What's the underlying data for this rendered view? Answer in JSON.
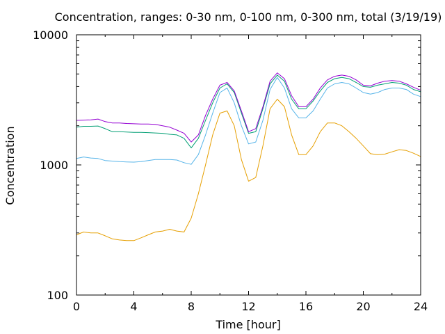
{
  "chart_data": {
    "type": "line",
    "title": "Concentration, ranges: 0-30 nm, 0-100 nm, 0-300 nm, total (3/19/19)",
    "xlabel": "Time [hour]",
    "ylabel": "Concentration",
    "xlim": [
      0,
      24
    ],
    "ylim": [
      100,
      10000
    ],
    "yscale": "log",
    "xticks": [
      0,
      4,
      8,
      12,
      16,
      20,
      24
    ],
    "yticks": [
      100,
      1000,
      10000
    ],
    "xtick_labels": [
      "0",
      "4",
      "8",
      "12",
      "16",
      "20",
      "24"
    ],
    "ytick_labels": [
      "100",
      "1000",
      "10000"
    ],
    "grid": false,
    "legend": null,
    "series": [
      {
        "color": "#e69f00",
        "x": [
          0,
          0.5,
          1,
          1.5,
          2,
          2.5,
          3,
          3.5,
          4,
          4.5,
          5,
          5.5,
          6,
          6.5,
          7,
          7.5,
          8,
          8.5,
          9,
          9.5,
          10,
          10.5,
          11,
          11.5,
          12,
          12.5,
          13,
          13.5,
          14,
          14.5,
          15,
          15.5,
          16,
          16.5,
          17,
          17.5,
          18,
          18.5,
          19,
          19.5,
          20,
          20.5,
          21,
          21.5,
          22,
          22.5,
          23,
          23.5,
          24
        ],
        "y": [
          290,
          305,
          300,
          300,
          285,
          270,
          265,
          262,
          262,
          275,
          290,
          305,
          310,
          320,
          310,
          305,
          390,
          600,
          1000,
          1700,
          2500,
          2600,
          2000,
          1100,
          750,
          800,
          1400,
          2700,
          3200,
          2800,
          1700,
          1200,
          1200,
          1400,
          1800,
          2100,
          2100,
          2000,
          1800,
          1600,
          1400,
          1220,
          1200,
          1210,
          1260,
          1310,
          1290,
          1230,
          1160
        ]
      },
      {
        "color": "#56b4e9",
        "x": [
          0,
          0.5,
          1,
          1.5,
          2,
          2.5,
          3,
          3.5,
          4,
          4.5,
          5,
          5.5,
          6,
          6.5,
          7,
          7.5,
          8,
          8.5,
          9,
          9.5,
          10,
          10.5,
          11,
          11.5,
          12,
          12.5,
          13,
          13.5,
          14,
          14.5,
          15,
          15.5,
          16,
          16.5,
          17,
          17.5,
          18,
          18.5,
          19,
          19.5,
          20,
          20.5,
          21,
          21.5,
          22,
          22.5,
          23,
          23.5,
          24
        ],
        "y": [
          1120,
          1150,
          1130,
          1120,
          1080,
          1070,
          1060,
          1055,
          1050,
          1060,
          1080,
          1100,
          1100,
          1100,
          1090,
          1040,
          1010,
          1200,
          1700,
          2500,
          3600,
          3900,
          3000,
          2000,
          1450,
          1500,
          2200,
          3800,
          4700,
          3900,
          2700,
          2300,
          2300,
          2600,
          3200,
          3900,
          4200,
          4300,
          4200,
          3900,
          3600,
          3500,
          3600,
          3800,
          3900,
          3900,
          3800,
          3500,
          3350
        ]
      },
      {
        "color": "#009e73",
        "x": [
          0,
          0.5,
          1,
          1.5,
          2,
          2.5,
          3,
          3.5,
          4,
          4.5,
          5,
          5.5,
          6,
          6.5,
          7,
          7.5,
          8,
          8.5,
          9,
          9.5,
          10,
          10.5,
          11,
          11.5,
          12,
          12.5,
          13,
          13.5,
          14,
          14.5,
          15,
          15.5,
          16,
          16.5,
          17,
          17.5,
          18,
          18.5,
          19,
          19.5,
          20,
          20.5,
          21,
          21.5,
          22,
          22.5,
          23,
          23.5,
          24
        ],
        "y": [
          1950,
          1980,
          1980,
          1990,
          1900,
          1800,
          1800,
          1790,
          1780,
          1780,
          1770,
          1760,
          1750,
          1720,
          1700,
          1600,
          1350,
          1600,
          2200,
          3000,
          3900,
          4200,
          3600,
          2500,
          1750,
          1800,
          2700,
          4200,
          4900,
          4400,
          3200,
          2700,
          2700,
          3100,
          3700,
          4300,
          4600,
          4700,
          4600,
          4300,
          4000,
          3950,
          4100,
          4200,
          4300,
          4250,
          4100,
          3800,
          3650
        ]
      },
      {
        "color": "#9400d3",
        "x": [
          0,
          0.5,
          1,
          1.5,
          2,
          2.5,
          3,
          3.5,
          4,
          4.5,
          5,
          5.5,
          6,
          6.5,
          7,
          7.5,
          8,
          8.5,
          9,
          9.5,
          10,
          10.5,
          11,
          11.5,
          12,
          12.5,
          13,
          13.5,
          14,
          14.5,
          15,
          15.5,
          16,
          16.5,
          17,
          17.5,
          18,
          18.5,
          19,
          19.5,
          20,
          20.5,
          21,
          21.5,
          22,
          22.5,
          23,
          23.5,
          24
        ],
        "y": [
          2200,
          2210,
          2220,
          2250,
          2150,
          2100,
          2100,
          2080,
          2070,
          2060,
          2060,
          2050,
          2000,
          1950,
          1850,
          1750,
          1500,
          1700,
          2400,
          3200,
          4100,
          4300,
          3700,
          2600,
          1800,
          1900,
          2800,
          4400,
          5100,
          4600,
          3400,
          2800,
          2800,
          3200,
          3900,
          4500,
          4800,
          4900,
          4800,
          4500,
          4100,
          4050,
          4250,
          4400,
          4450,
          4400,
          4200,
          3950,
          3750
        ]
      }
    ]
  }
}
